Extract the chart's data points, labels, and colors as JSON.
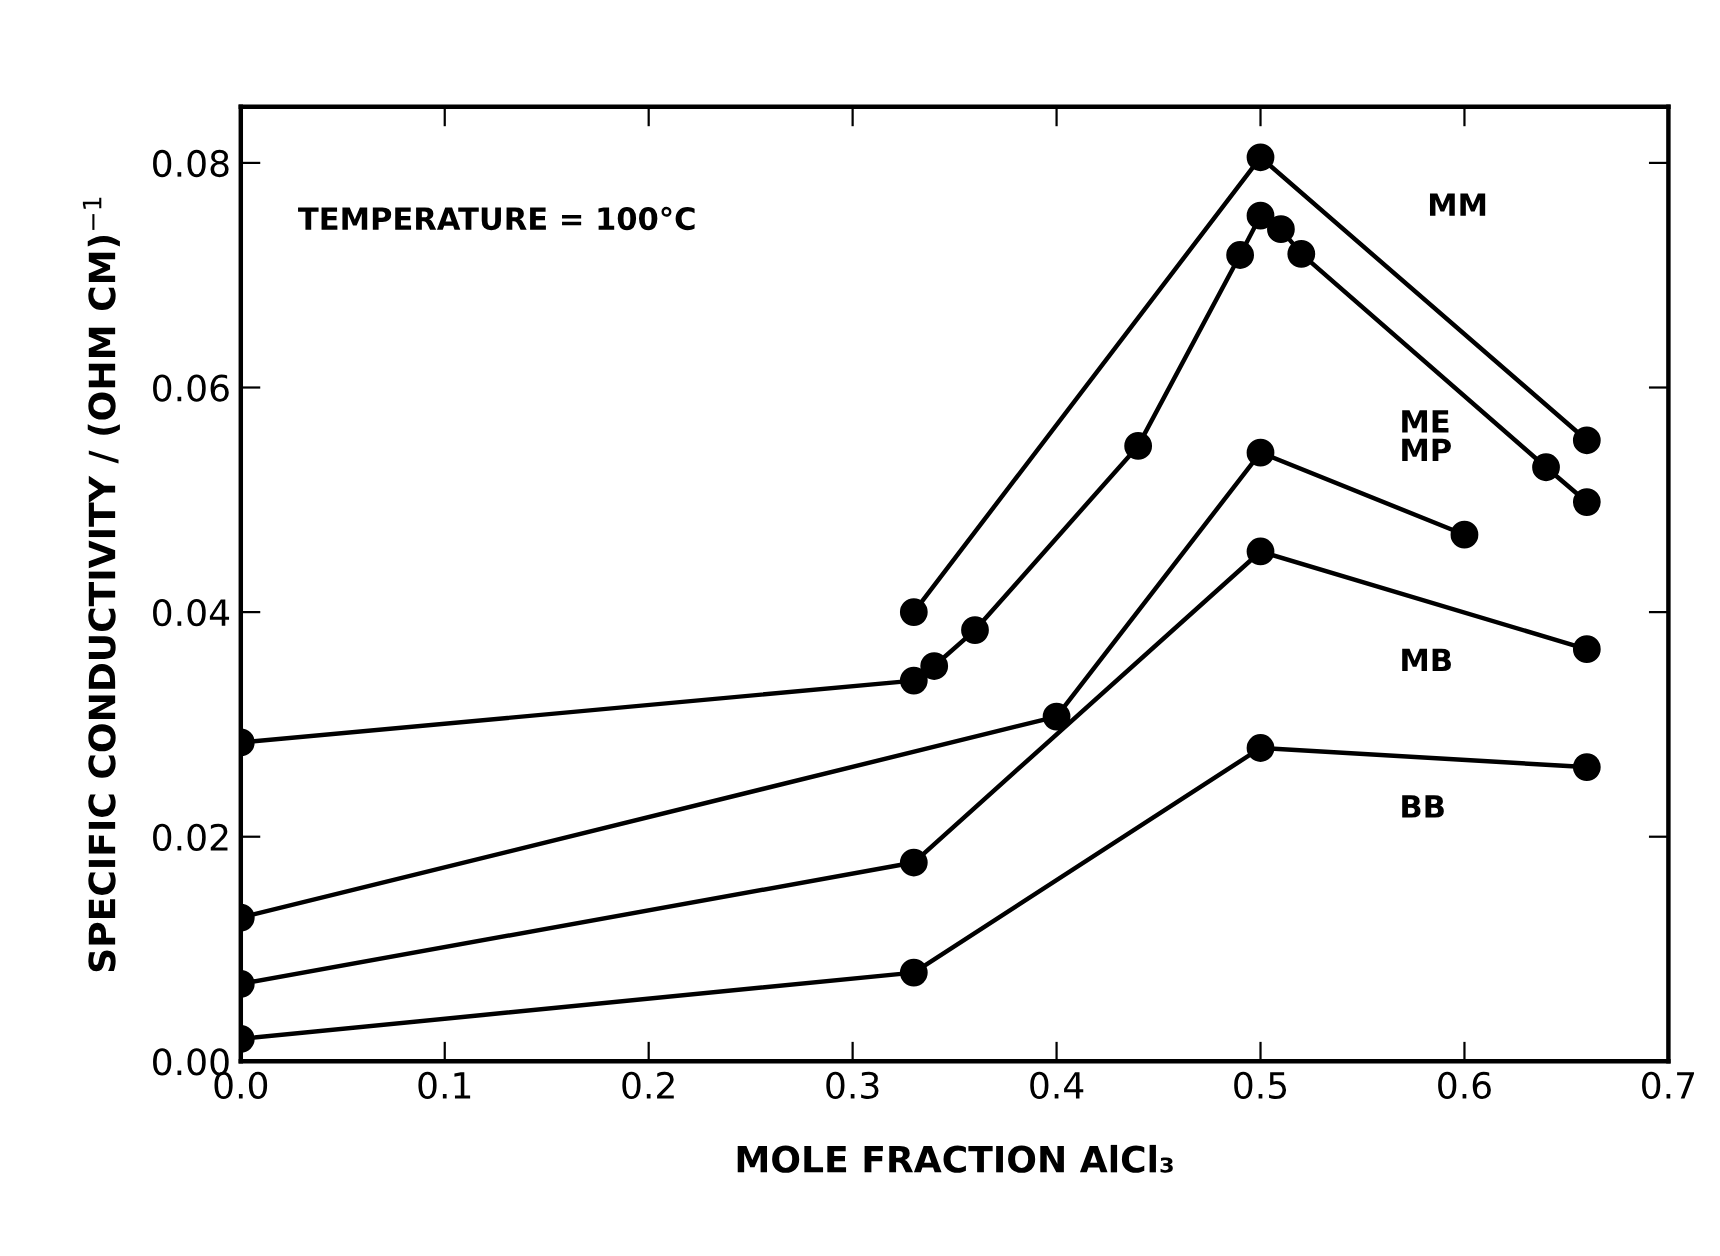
{
  "chart_data": {
    "type": "line",
    "xlabel": "MOLE FRACTION AlCl₃",
    "ylabel": "SPECIFIC CONDUCTIVITY / (OHM CM)$^{−1}$",
    "annotations": [
      "TEMPERATURE = 100°C"
    ],
    "marker": "circle",
    "line_style": "solid",
    "grid": false,
    "legend": false,
    "xlim": [
      0,
      0.7
    ],
    "ylim": [
      0,
      0.085
    ],
    "xticks": [
      {
        "value": 0,
        "label": "0.0"
      },
      0.1,
      0.2,
      0.3,
      0.4,
      0.5,
      0.6,
      0.7
    ],
    "yticks": [
      {
        "value": 0,
        "label": "0.00"
      },
      {
        "value": 0.02,
        "label": "0.02"
      },
      {
        "value": 0.04,
        "label": "0.04"
      },
      {
        "value": 0.06,
        "label": "0.06"
      },
      {
        "value": 0.08,
        "label": "0.08"
      }
    ],
    "series": [
      {
        "name": "MM",
        "color": "#000000",
        "x": [
          0.33,
          0.5,
          0.66
        ],
        "values": [
          0.04,
          0.0805,
          0.0553
        ]
      },
      {
        "name": "ME",
        "color": "#000000",
        "x": [
          0,
          0.33,
          0.34,
          0.36,
          0.44,
          0.49,
          0.5,
          0.51,
          0.52,
          0.64,
          0.66
        ],
        "values": [
          0.0284,
          0.0339,
          0.0352,
          0.0384,
          0.0548,
          0.0718,
          0.0753,
          0.0741,
          0.0719,
          0.0529,
          0.0498
        ]
      },
      {
        "name": "MP",
        "color": "#000000",
        "x": [
          0,
          0.4,
          0.5,
          0.6
        ],
        "values": [
          0.0128,
          0.0307,
          0.0542,
          0.0469
        ]
      },
      {
        "name": "MB",
        "color": "#000000",
        "x": [
          0,
          0.33,
          0.5,
          0.66
        ],
        "values": [
          0.0069,
          0.0177,
          0.0454,
          0.0367
        ]
      },
      {
        "name": "BB",
        "color": "#000000",
        "x": [
          0,
          0.33,
          0.5,
          0.66
        ],
        "values": [
          0.002,
          0.0079,
          0.0279,
          0.0262
        ]
      }
    ]
  }
}
